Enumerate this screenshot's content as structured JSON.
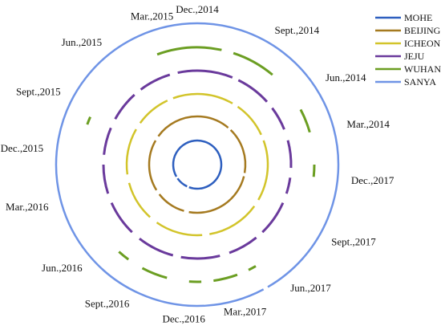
{
  "chart_data": {
    "type": "radial-timeline",
    "time_labels": [
      {
        "text": "Dec.,2014",
        "angle": 0
      },
      {
        "text": "Sept.,2014",
        "angle": 30
      },
      {
        "text": "Jun.,2014",
        "angle": 56
      },
      {
        "text": "Mar.,2014",
        "angle": 75
      },
      {
        "text": "Dec.,2017",
        "angle": 96
      },
      {
        "text": "Sept.,2017",
        "angle": 120
      },
      {
        "text": "Jun.,2017",
        "angle": 143
      },
      {
        "text": "Mar.,2017",
        "angle": 162
      },
      {
        "text": "Dec.,2016",
        "angle": 185
      },
      {
        "text": "Sept.,2016",
        "angle": 206
      },
      {
        "text": "Jun.,2016",
        "angle": 228
      },
      {
        "text": "Mar.,2016",
        "angle": 254
      },
      {
        "text": "Dec.,2015",
        "angle": 276
      },
      {
        "text": "Sept.,2015",
        "angle": 298
      },
      {
        "text": "Jun.,2015",
        "angle": 322
      },
      {
        "text": "Mar.,2015",
        "angle": 343
      }
    ],
    "series": [
      {
        "name": "MOHE",
        "color": "#2e5fbf",
        "radius_rank": 1,
        "segments": [
          [
            0,
            200
          ],
          [
            205,
            235
          ],
          [
            240,
            360
          ]
        ]
      },
      {
        "name": "BEIJING",
        "color": "#a57a20",
        "radius_rank": 2,
        "segments": [
          [
            0,
            40
          ],
          [
            44,
            100
          ],
          [
            104,
            190
          ],
          [
            196,
            232
          ],
          [
            238,
            300
          ],
          [
            306,
            360
          ]
        ]
      },
      {
        "name": "ICHEON",
        "color": "#d2c42a",
        "radius_rank": 3,
        "segments": [
          [
            0,
            30
          ],
          [
            35,
            65
          ],
          [
            70,
            120
          ],
          [
            126,
            170
          ],
          [
            176,
            215
          ],
          [
            222,
            255
          ],
          [
            262,
            300
          ],
          [
            306,
            335
          ],
          [
            340,
            360
          ]
        ]
      },
      {
        "name": "JEJU",
        "color": "#6a3a9c",
        "radius_rank": 4,
        "segments": [
          [
            0,
            22
          ],
          [
            26,
            48
          ],
          [
            53,
            68
          ],
          [
            75,
            92
          ],
          [
            98,
            108
          ],
          [
            114,
            136
          ],
          [
            141,
            160
          ],
          [
            166,
            190
          ],
          [
            195,
            218
          ],
          [
            224,
            246
          ],
          [
            252,
            270
          ],
          [
            276,
            293
          ],
          [
            299,
            318
          ],
          [
            323,
            343
          ],
          [
            348,
            360
          ]
        ]
      },
      {
        "name": "WUHAN",
        "color": "#6b9e22",
        "radius_rank": 5,
        "segments": [
          [
            -20,
            12
          ],
          [
            18,
            40
          ],
          [
            62,
            74
          ],
          [
            90,
            96
          ],
          [
            150,
            154
          ],
          [
            160,
            172
          ],
          [
            178,
            184
          ],
          [
            195,
            208
          ],
          [
            216,
            222
          ],
          [
            290,
            294
          ]
        ]
      },
      {
        "name": "SANYA",
        "color": "#6f94e6",
        "radius_rank": 6,
        "segments": [
          [
            0,
            150
          ],
          [
            152,
            360
          ]
        ]
      }
    ]
  },
  "legend": [
    {
      "label": "MOHE",
      "color": "#2e5fbf"
    },
    {
      "label": "BEIJING",
      "color": "#a57a20"
    },
    {
      "label": "ICHEON",
      "color": "#d2c42a"
    },
    {
      "label": "JEJU",
      "color": "#6a3a9c"
    },
    {
      "label": "WUHAN",
      "color": "#6b9e22"
    },
    {
      "label": "SANYA",
      "color": "#6f94e6"
    }
  ]
}
